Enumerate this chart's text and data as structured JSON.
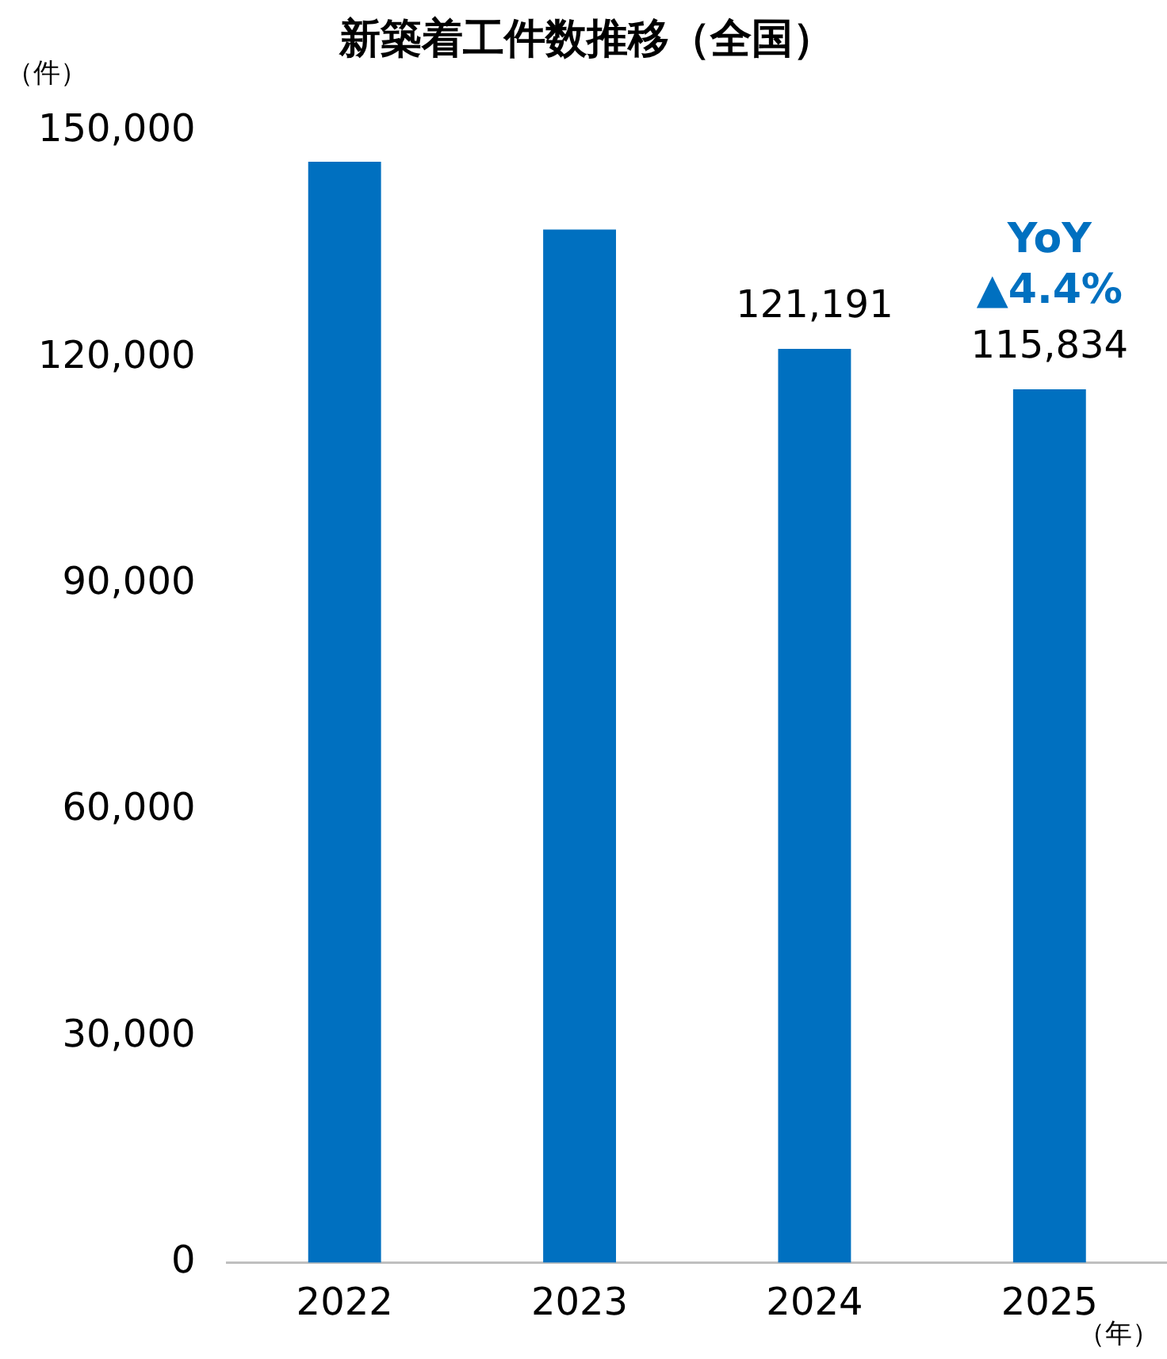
{
  "chart_data": {
    "type": "bar",
    "title": "新築着工件数推移（全国）",
    "ylabel": "（件）",
    "xlabel": "（年）",
    "categories": [
      "2022",
      "2023",
      "2024",
      "2025"
    ],
    "values": [
      146000,
      137000,
      121191,
      115834
    ],
    "value_labels": [
      null,
      null,
      "121,191",
      "115,834"
    ],
    "color": "#0070c0",
    "ylim": [
      0,
      150000
    ],
    "yticks": [
      {
        "value": 0,
        "label": "0"
      },
      {
        "value": 30000,
        "label": "30,000"
      },
      {
        "value": 60000,
        "label": "60,000"
      },
      {
        "value": 90000,
        "label": "90,000"
      },
      {
        "value": 120000,
        "label": "120,000"
      },
      {
        "value": 150000,
        "label": "150,000"
      }
    ],
    "grid": false,
    "legend": false,
    "annotations": [
      {
        "text": "YoY",
        "x": "2025",
        "y": 115834
      },
      {
        "text": "▲4.4%",
        "x": "2025",
        "y": 115834
      }
    ]
  }
}
